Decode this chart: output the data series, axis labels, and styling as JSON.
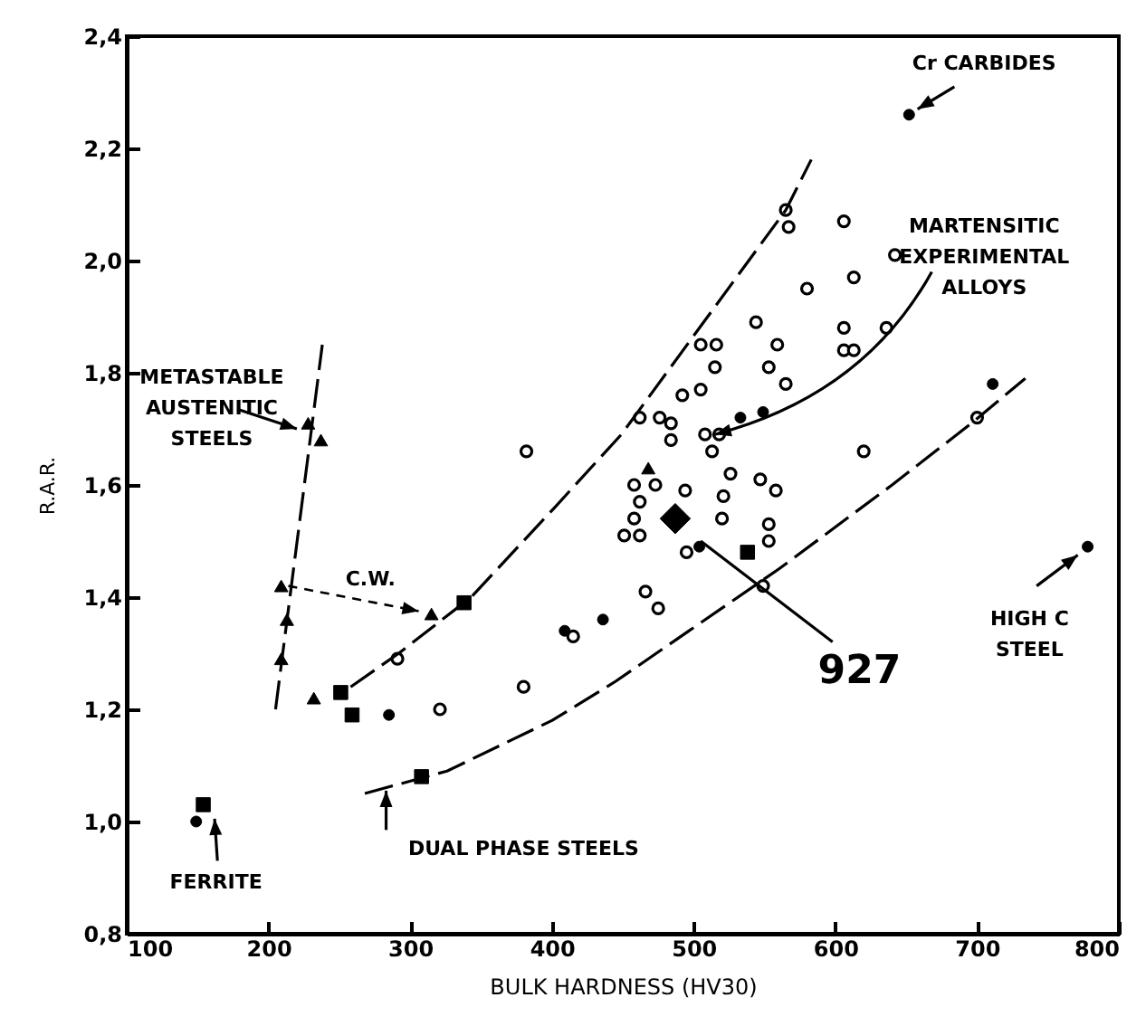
{
  "chart_data": {
    "type": "scatter",
    "xlabel": "BULK HARDNESS (HV30)",
    "ylabel": "R.A.R.",
    "xlim": [
      100,
      800
    ],
    "xticks": [
      100,
      200,
      300,
      400,
      500,
      600,
      700,
      800
    ],
    "ylim": [
      0.8,
      2.4
    ],
    "yticks": [
      {
        "value": 0.8,
        "label": "0,8"
      },
      {
        "value": 1.0,
        "label": "1,0"
      },
      {
        "value": 1.2,
        "label": "1,2"
      },
      {
        "value": 1.4,
        "label": "1,4"
      },
      {
        "value": 1.6,
        "label": "1,6"
      },
      {
        "value": 1.8,
        "label": "1,8"
      },
      {
        "value": 2.0,
        "label": "2,0"
      },
      {
        "value": 2.2,
        "label": "2,2"
      },
      {
        "value": 2.4,
        "label": "2,4"
      }
    ],
    "grid": false,
    "series": [
      {
        "marker": "circle",
        "color": "#ffffff",
        "x": [
          291,
          321,
          380,
          415,
          466,
          382,
          462,
          565,
          567,
          606,
          642,
          613,
          580,
          544,
          606,
          606,
          613,
          636,
          505,
          516,
          515,
          559,
          553,
          565,
          505,
          492,
          476,
          484,
          484,
          508,
          518,
          513,
          700,
          620,
          526,
          521,
          520,
          547,
          558,
          553,
          458,
          473,
          462,
          458,
          451,
          462,
          494,
          495,
          553,
          549,
          475
        ],
        "values": [
          1.29,
          1.2,
          1.24,
          1.33,
          1.41,
          1.66,
          1.72,
          2.09,
          2.06,
          2.07,
          2.01,
          1.97,
          1.95,
          1.89,
          1.88,
          1.84,
          1.84,
          1.88,
          1.85,
          1.85,
          1.81,
          1.85,
          1.81,
          1.78,
          1.77,
          1.76,
          1.72,
          1.71,
          1.68,
          1.69,
          1.69,
          1.66,
          1.72,
          1.66,
          1.62,
          1.58,
          1.54,
          1.61,
          1.59,
          1.53,
          1.6,
          1.6,
          1.57,
          1.54,
          1.51,
          1.51,
          1.59,
          1.48,
          1.5,
          1.42,
          1.38
        ]
      },
      {
        "marker": "circle",
        "color": "#000000",
        "x": [
          149,
          285,
          409,
          436,
          533,
          549,
          711,
          652,
          504,
          778
        ],
        "values": [
          1.0,
          1.19,
          1.34,
          1.36,
          1.72,
          1.73,
          1.78,
          2.26,
          1.49,
          1.49
        ]
      },
      {
        "marker": "square",
        "color": "#000000",
        "x": [
          154,
          251,
          259,
          338,
          308,
          538
        ],
        "values": [
          1.03,
          1.23,
          1.19,
          1.39,
          1.08,
          1.48
        ]
      },
      {
        "marker": "triangle",
        "color": "#000000",
        "x": [
          209,
          213,
          209,
          232,
          315,
          228,
          237,
          468
        ],
        "values": [
          1.42,
          1.36,
          1.29,
          1.22,
          1.37,
          1.71,
          1.68,
          1.63
        ]
      },
      {
        "marker": "diamond",
        "color": "#000000",
        "x": [
          487
        ],
        "values": [
          1.54
        ]
      },
      {
        "type": "line",
        "line_style": "dashed",
        "color": "#000000",
        "x": [
          258,
          292,
          343,
          402,
          449,
          565,
          583
        ],
        "values": [
          1.24,
          1.3,
          1.4,
          1.56,
          1.69,
          2.09,
          2.18
        ]
      },
      {
        "type": "line",
        "line_style": "dashed",
        "color": "#000000",
        "x": [
          268,
          326,
          400,
          445,
          560,
          640,
          696,
          734
        ],
        "values": [
          1.05,
          1.09,
          1.18,
          1.25,
          1.45,
          1.6,
          1.71,
          1.79
        ]
      },
      {
        "type": "line",
        "line_style": "dashed",
        "color": "#000000",
        "x": [
          205,
          238
        ],
        "values": [
          1.2,
          1.85
        ]
      }
    ],
    "annotations": [
      "Cr CARBIDES",
      {
        "text": "MARTENSITIC\nEXPERIMENTAL\nALLOYS",
        "x": 515,
        "y": 1.69
      },
      "METASTABLE\nAUSTENITIC\nSTEELS",
      "C.W.",
      "FERRITE",
      "DUAL PHASE STEELS",
      "HIGH C\nSTEEL",
      {
        "text": "927",
        "x": 505,
        "y": 1.5
      }
    ]
  }
}
